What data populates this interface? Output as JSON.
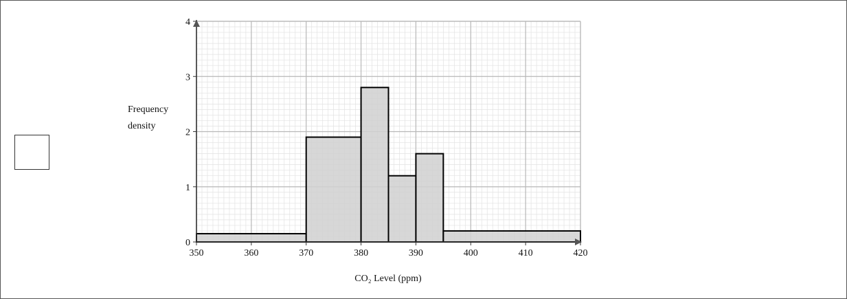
{
  "chart_data": {
    "type": "histogram",
    "xlabel": "CO₂ Level (ppm)",
    "ylabel_lines": [
      "Frequency",
      "density"
    ],
    "xlim": [
      350,
      420
    ],
    "ylim": [
      0,
      4
    ],
    "x_ticks": [
      350,
      360,
      370,
      380,
      390,
      400,
      410,
      420
    ],
    "y_ticks": [
      0,
      1,
      2,
      3,
      4
    ],
    "grid": true,
    "minor_grid": true,
    "bars": [
      {
        "x0": 350,
        "x1": 370,
        "density": 0.15
      },
      {
        "x0": 370,
        "x1": 380,
        "density": 1.9
      },
      {
        "x0": 380,
        "x1": 385,
        "density": 2.8
      },
      {
        "x0": 385,
        "x1": 390,
        "density": 1.2
      },
      {
        "x0": 390,
        "x1": 395,
        "density": 1.6
      },
      {
        "x0": 395,
        "x1": 420,
        "density": 0.2
      }
    ],
    "bar_fill": "#d0d0d0",
    "bar_stroke": "#000000",
    "grid_major_color": "#b8b8b8",
    "grid_minor_color": "#e2e2e2"
  },
  "answer_box": {
    "value": ""
  }
}
